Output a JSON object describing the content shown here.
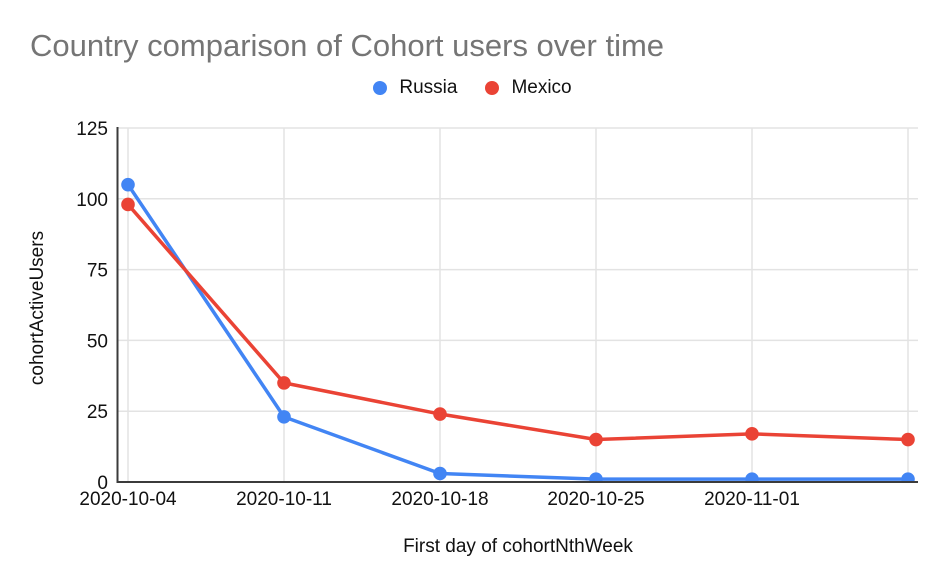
{
  "chart_data": {
    "type": "line",
    "title": "Country comparison of Cohort users over time",
    "xlabel": "First day of cohortNthWeek",
    "ylabel": "cohortActiveUsers",
    "categories": [
      "2020-10-04",
      "2020-10-11",
      "2020-10-18",
      "2020-10-25",
      "2020-11-01",
      ""
    ],
    "series": [
      {
        "name": "Russia",
        "color": "#4285F4",
        "values": [
          105,
          23,
          3,
          1,
          1,
          1
        ]
      },
      {
        "name": "Mexico",
        "color": "#EA4335",
        "values": [
          98,
          35,
          24,
          15,
          17,
          15
        ]
      }
    ],
    "y_ticks": [
      0,
      25,
      50,
      75,
      100,
      125
    ],
    "ylim": [
      0,
      125
    ],
    "grid": true,
    "legend_position": "top",
    "marker": "circle"
  }
}
